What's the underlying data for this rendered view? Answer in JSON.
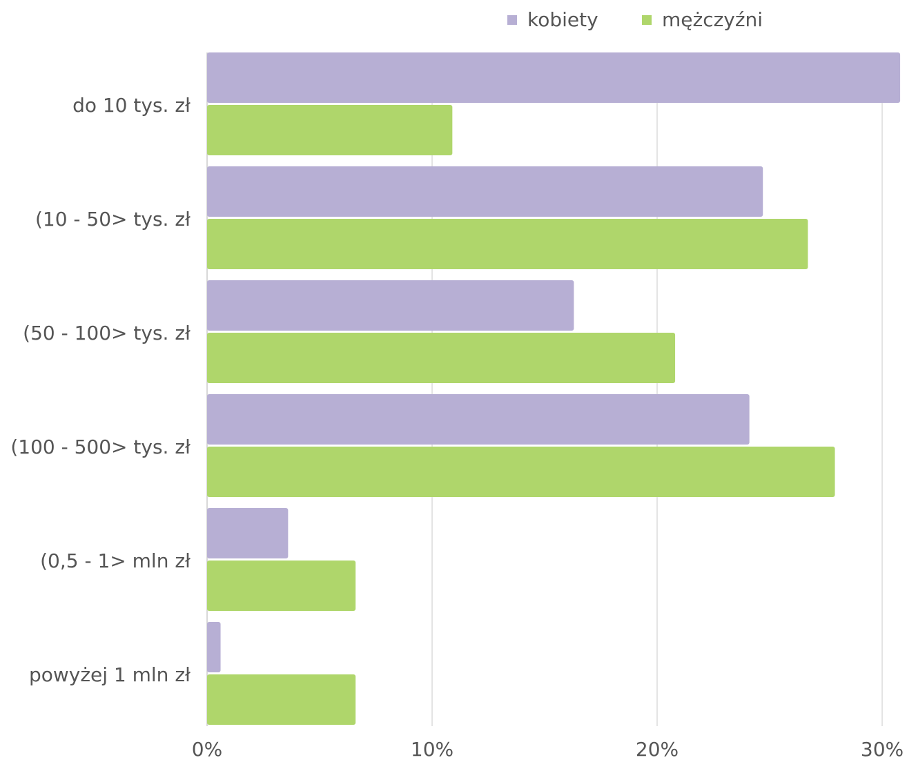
{
  "chart_data": {
    "type": "barh",
    "categories": [
      "do 10 tys. zł",
      "(10 - 50> tys. zł",
      "(50 - 100> tys. zł",
      "(100 - 500> tys. zł",
      "(0,5 - 1> mln zł",
      "powyżej 1 mln zł"
    ],
    "series": [
      {
        "name": "kobiety",
        "color": "#b7afd4",
        "values": [
          30.8,
          24.7,
          16.3,
          24.1,
          3.6,
          0.6
        ]
      },
      {
        "name": "mężczyźni",
        "color": "#afd66b",
        "values": [
          10.9,
          26.7,
          20.8,
          27.9,
          6.6,
          6.6
        ]
      }
    ],
    "xlim": [
      0,
      31
    ],
    "xticks": [
      {
        "value": 0,
        "label": "0%"
      },
      {
        "value": 10,
        "label": "10%"
      },
      {
        "value": 20,
        "label": "20%"
      },
      {
        "value": 30,
        "label": "30%"
      }
    ],
    "grid": true,
    "legend": "top"
  }
}
